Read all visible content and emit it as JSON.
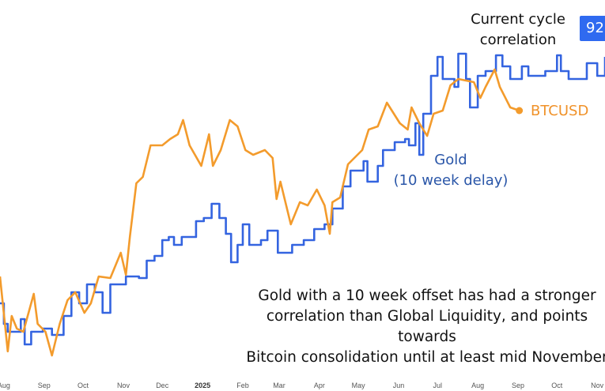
{
  "chart_data": {
    "type": "line",
    "title": "",
    "xlabel": "",
    "ylabel": "",
    "xlim": [
      "2024-07-29",
      "2025-11-07"
    ],
    "ylim": [
      0,
      120
    ],
    "grid": false,
    "x_ticks": [
      {
        "date": "2024-08-01",
        "label": "Aug"
      },
      {
        "date": "2024-09-01",
        "label": "Sep"
      },
      {
        "date": "2024-10-01",
        "label": "Oct"
      },
      {
        "date": "2024-11-01",
        "label": "Nov"
      },
      {
        "date": "2024-12-01",
        "label": "Dec"
      },
      {
        "date": "2025-01-01",
        "label": "2025",
        "bold": true
      },
      {
        "date": "2025-02-01",
        "label": "Feb"
      },
      {
        "date": "2025-03-01",
        "label": "Mar"
      },
      {
        "date": "2025-04-01",
        "label": "Apr"
      },
      {
        "date": "2025-05-01",
        "label": "May"
      },
      {
        "date": "2025-06-01",
        "label": "Jun"
      },
      {
        "date": "2025-07-01",
        "label": "Jul"
      },
      {
        "date": "2025-08-01",
        "label": "Aug"
      },
      {
        "date": "2025-09-01",
        "label": "Sep"
      },
      {
        "date": "2025-10-01",
        "label": "Oct"
      },
      {
        "date": "2025-11-01",
        "label": "Nov"
      }
    ],
    "series": [
      {
        "name": "BTCUSD",
        "color": "#f39b2c",
        "style": "line",
        "end_marker": true,
        "points": [
          [
            "2024-07-29",
            32.5
          ],
          [
            "2024-08-04",
            8.8
          ],
          [
            "2024-08-07",
            20
          ],
          [
            "2024-08-11",
            16
          ],
          [
            "2024-08-16",
            15
          ],
          [
            "2024-08-24",
            27
          ],
          [
            "2024-08-27",
            17.5
          ],
          [
            "2024-09-02",
            15
          ],
          [
            "2024-09-07",
            7.5
          ],
          [
            "2024-09-13",
            17.5
          ],
          [
            "2024-09-19",
            25
          ],
          [
            "2024-09-25",
            27.5
          ],
          [
            "2024-10-02",
            21
          ],
          [
            "2024-10-07",
            24
          ],
          [
            "2024-10-13",
            32.5
          ],
          [
            "2024-10-22",
            32
          ],
          [
            "2024-10-30",
            40
          ],
          [
            "2024-11-03",
            33
          ],
          [
            "2024-11-06",
            45
          ],
          [
            "2024-11-11",
            62
          ],
          [
            "2024-11-16",
            64
          ],
          [
            "2024-11-22",
            74
          ],
          [
            "2024-12-01",
            74
          ],
          [
            "2024-12-07",
            76
          ],
          [
            "2024-12-13",
            77.5
          ],
          [
            "2024-12-17",
            82
          ],
          [
            "2024-12-22",
            74
          ],
          [
            "2024-12-31",
            67.5
          ],
          [
            "2025-01-06",
            77.5
          ],
          [
            "2025-01-09",
            67.5
          ],
          [
            "2025-01-15",
            72.5
          ],
          [
            "2025-01-22",
            82
          ],
          [
            "2025-01-28",
            80
          ],
          [
            "2025-02-03",
            72.5
          ],
          [
            "2025-02-09",
            71
          ],
          [
            "2025-02-18",
            72.5
          ],
          [
            "2025-02-24",
            70
          ],
          [
            "2025-02-27",
            57
          ],
          [
            "2025-03-02",
            62.5
          ],
          [
            "2025-03-10",
            49
          ],
          [
            "2025-03-17",
            56
          ],
          [
            "2025-03-23",
            55
          ],
          [
            "2025-03-30",
            60
          ],
          [
            "2025-04-05",
            55
          ],
          [
            "2025-04-09",
            46
          ],
          [
            "2025-04-11",
            56
          ],
          [
            "2025-04-17",
            57.5
          ],
          [
            "2025-04-23",
            68
          ],
          [
            "2025-05-04",
            72.5
          ],
          [
            "2025-05-09",
            79
          ],
          [
            "2025-05-16",
            80
          ],
          [
            "2025-05-23",
            87.5
          ],
          [
            "2025-06-02",
            81
          ],
          [
            "2025-06-08",
            79
          ],
          [
            "2025-06-11",
            86
          ],
          [
            "2025-06-17",
            81
          ],
          [
            "2025-06-23",
            77
          ],
          [
            "2025-06-28",
            84
          ],
          [
            "2025-07-05",
            85
          ],
          [
            "2025-07-11",
            93
          ],
          [
            "2025-07-17",
            95
          ],
          [
            "2025-07-29",
            94
          ],
          [
            "2025-08-03",
            89
          ],
          [
            "2025-08-07",
            92.5
          ],
          [
            "2025-08-14",
            98
          ],
          [
            "2025-08-18",
            92.5
          ],
          [
            "2025-08-26",
            86
          ],
          [
            "2025-09-02",
            85
          ]
        ]
      },
      {
        "name": "Gold (10 week delay)",
        "color": "#3464e0",
        "style": "step",
        "points": [
          [
            "2024-07-29",
            24
          ],
          [
            "2024-08-01",
            17.5
          ],
          [
            "2024-08-04",
            15
          ],
          [
            "2024-08-14",
            19
          ],
          [
            "2024-08-17",
            11
          ],
          [
            "2024-08-22",
            15
          ],
          [
            "2024-08-31",
            16
          ],
          [
            "2024-09-07",
            14
          ],
          [
            "2024-09-16",
            20
          ],
          [
            "2024-09-22",
            27.5
          ],
          [
            "2024-09-28",
            24
          ],
          [
            "2024-10-04",
            30
          ],
          [
            "2024-10-10",
            27.5
          ],
          [
            "2024-10-16",
            21
          ],
          [
            "2024-10-22",
            30
          ],
          [
            "2024-11-03",
            32.5
          ],
          [
            "2024-11-13",
            32
          ],
          [
            "2024-11-19",
            37.5
          ],
          [
            "2024-11-25",
            39
          ],
          [
            "2024-12-01",
            44
          ],
          [
            "2024-12-06",
            45
          ],
          [
            "2024-12-10",
            42.5
          ],
          [
            "2024-12-16",
            45
          ],
          [
            "2024-12-27",
            50
          ],
          [
            "2025-01-02",
            51
          ],
          [
            "2025-01-08",
            55.5
          ],
          [
            "2025-01-14",
            51
          ],
          [
            "2025-01-19",
            46
          ],
          [
            "2025-01-23",
            37
          ],
          [
            "2025-01-28",
            42.5
          ],
          [
            "2025-02-01",
            49
          ],
          [
            "2025-02-06",
            42.5
          ],
          [
            "2025-02-15",
            44
          ],
          [
            "2025-02-20",
            47
          ],
          [
            "2025-02-28",
            40
          ],
          [
            "2025-03-11",
            42.5
          ],
          [
            "2025-03-20",
            44
          ],
          [
            "2025-03-28",
            47.5
          ],
          [
            "2025-04-05",
            49
          ],
          [
            "2025-04-11",
            54
          ],
          [
            "2025-04-19",
            61
          ],
          [
            "2025-04-25",
            66
          ],
          [
            "2025-05-05",
            69
          ],
          [
            "2025-05-08",
            62.5
          ],
          [
            "2025-05-16",
            67.5
          ],
          [
            "2025-05-20",
            72.5
          ],
          [
            "2025-05-29",
            75
          ],
          [
            "2025-06-06",
            76
          ],
          [
            "2025-06-09",
            74
          ],
          [
            "2025-06-14",
            81
          ],
          [
            "2025-06-17",
            71
          ],
          [
            "2025-06-20",
            84
          ],
          [
            "2025-06-26",
            96
          ],
          [
            "2025-07-01",
            102
          ],
          [
            "2025-07-05",
            95
          ],
          [
            "2025-07-14",
            92.5
          ],
          [
            "2025-07-17",
            103
          ],
          [
            "2025-07-23",
            95
          ],
          [
            "2025-07-26",
            86
          ],
          [
            "2025-08-01",
            96
          ],
          [
            "2025-08-07",
            97.5
          ],
          [
            "2025-08-15",
            102.5
          ],
          [
            "2025-08-20",
            99
          ],
          [
            "2025-08-26",
            95
          ],
          [
            "2025-09-04",
            99
          ],
          [
            "2025-09-09",
            96
          ],
          [
            "2025-09-22",
            97.5
          ],
          [
            "2025-10-01",
            102.5
          ],
          [
            "2025-10-04",
            97.5
          ],
          [
            "2025-10-10",
            95
          ],
          [
            "2025-10-24",
            100
          ],
          [
            "2025-11-01",
            96
          ],
          [
            "2025-11-07",
            102
          ]
        ]
      }
    ],
    "annotations": {
      "current_cycle": [
        "Current cycle",
        "correlation"
      ],
      "btc_label": "BTCUSD",
      "gold_label": [
        "Gold",
        "(10 week delay)"
      ],
      "note": [
        "Gold with a 10 week offset has had a stronger",
        "correlation than Global Liquidity, and points towards",
        "Bitcoin consolidation until at least mid November"
      ],
      "badge": "92"
    }
  }
}
